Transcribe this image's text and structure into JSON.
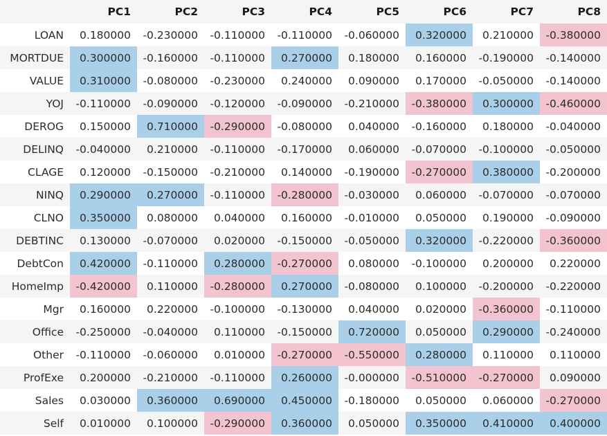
{
  "table": {
    "corner": "",
    "columns": [
      "PC1",
      "PC2",
      "PC3",
      "PC4",
      "PC5",
      "PC6",
      "PC7",
      "PC8"
    ],
    "colors": {
      "positive_highlight": "#a9d0e8",
      "negative_highlight": "#f3c4cf",
      "stripe": "#f5f5f5"
    },
    "rows": [
      {
        "label": "LOAN",
        "values": [
          "0.180000",
          "-0.230000",
          "-0.110000",
          "-0.110000",
          "-0.060000",
          "0.320000",
          "0.210000",
          "-0.380000"
        ],
        "highlight": [
          "",
          "",
          "",
          "",
          "",
          "pos",
          "",
          "neg"
        ]
      },
      {
        "label": "MORTDUE",
        "values": [
          "0.300000",
          "-0.160000",
          "-0.110000",
          "0.270000",
          "0.180000",
          "0.160000",
          "-0.190000",
          "-0.140000"
        ],
        "highlight": [
          "pos",
          "",
          "",
          "pos",
          "",
          "",
          "",
          ""
        ]
      },
      {
        "label": "VALUE",
        "values": [
          "0.310000",
          "-0.080000",
          "-0.230000",
          "0.240000",
          "0.090000",
          "0.170000",
          "-0.050000",
          "-0.140000"
        ],
        "highlight": [
          "pos",
          "",
          "",
          "",
          "",
          "",
          "",
          ""
        ]
      },
      {
        "label": "YOJ",
        "values": [
          "-0.110000",
          "-0.090000",
          "-0.120000",
          "-0.090000",
          "-0.210000",
          "-0.380000",
          "0.300000",
          "-0.460000"
        ],
        "highlight": [
          "",
          "",
          "",
          "",
          "",
          "neg",
          "pos",
          "neg"
        ]
      },
      {
        "label": "DEROG",
        "values": [
          "0.150000",
          "0.710000",
          "-0.290000",
          "-0.080000",
          "0.040000",
          "-0.160000",
          "0.180000",
          "-0.040000"
        ],
        "highlight": [
          "",
          "pos",
          "neg",
          "",
          "",
          "",
          "",
          ""
        ]
      },
      {
        "label": "DELINQ",
        "values": [
          "-0.040000",
          "0.210000",
          "-0.110000",
          "-0.170000",
          "0.060000",
          "-0.070000",
          "-0.100000",
          "-0.050000"
        ],
        "highlight": [
          "",
          "",
          "",
          "",
          "",
          "",
          "",
          ""
        ]
      },
      {
        "label": "CLAGE",
        "values": [
          "0.120000",
          "-0.150000",
          "-0.210000",
          "0.140000",
          "-0.190000",
          "-0.270000",
          "0.380000",
          "-0.200000"
        ],
        "highlight": [
          "",
          "",
          "",
          "",
          "",
          "neg",
          "pos",
          ""
        ]
      },
      {
        "label": "NINQ",
        "values": [
          "0.290000",
          "0.270000",
          "-0.110000",
          "-0.280000",
          "-0.030000",
          "0.060000",
          "-0.070000",
          "-0.070000"
        ],
        "highlight": [
          "pos",
          "pos",
          "",
          "neg",
          "",
          "",
          "",
          ""
        ]
      },
      {
        "label": "CLNO",
        "values": [
          "0.350000",
          "0.080000",
          "0.040000",
          "0.160000",
          "-0.010000",
          "0.050000",
          "0.190000",
          "-0.090000"
        ],
        "highlight": [
          "pos",
          "",
          "",
          "",
          "",
          "",
          "",
          ""
        ]
      },
      {
        "label": "DEBTINC",
        "values": [
          "0.130000",
          "-0.070000",
          "0.020000",
          "-0.150000",
          "-0.050000",
          "0.320000",
          "-0.220000",
          "-0.360000"
        ],
        "highlight": [
          "",
          "",
          "",
          "",
          "",
          "pos",
          "",
          "neg"
        ]
      },
      {
        "label": "DebtCon",
        "values": [
          "0.420000",
          "-0.110000",
          "0.280000",
          "-0.270000",
          "0.080000",
          "-0.100000",
          "0.200000",
          "0.220000"
        ],
        "highlight": [
          "pos",
          "",
          "pos",
          "neg",
          "",
          "",
          "",
          ""
        ]
      },
      {
        "label": "HomeImp",
        "values": [
          "-0.420000",
          "0.110000",
          "-0.280000",
          "0.270000",
          "-0.080000",
          "0.100000",
          "-0.200000",
          "-0.220000"
        ],
        "highlight": [
          "neg",
          "",
          "neg",
          "pos",
          "",
          "",
          "",
          ""
        ]
      },
      {
        "label": "Mgr",
        "values": [
          "0.160000",
          "0.220000",
          "-0.100000",
          "-0.130000",
          "0.040000",
          "0.020000",
          "-0.360000",
          "-0.110000"
        ],
        "highlight": [
          "",
          "",
          "",
          "",
          "",
          "",
          "neg",
          ""
        ]
      },
      {
        "label": "Office",
        "values": [
          "-0.250000",
          "-0.040000",
          "0.110000",
          "-0.150000",
          "0.720000",
          "0.050000",
          "0.290000",
          "-0.240000"
        ],
        "highlight": [
          "",
          "",
          "",
          "",
          "pos",
          "",
          "pos",
          ""
        ]
      },
      {
        "label": "Other",
        "values": [
          "-0.110000",
          "-0.060000",
          "0.010000",
          "-0.270000",
          "-0.550000",
          "0.280000",
          "0.110000",
          "0.110000"
        ],
        "highlight": [
          "",
          "",
          "",
          "neg",
          "neg",
          "pos",
          "",
          ""
        ]
      },
      {
        "label": "ProfExe",
        "values": [
          "0.200000",
          "-0.210000",
          "-0.110000",
          "0.260000",
          "-0.000000",
          "-0.510000",
          "-0.270000",
          "0.090000"
        ],
        "highlight": [
          "",
          "",
          "",
          "pos",
          "",
          "neg",
          "neg",
          ""
        ]
      },
      {
        "label": "Sales",
        "values": [
          "0.030000",
          "0.360000",
          "0.690000",
          "0.450000",
          "-0.180000",
          "0.050000",
          "0.060000",
          "-0.270000"
        ],
        "highlight": [
          "",
          "pos",
          "pos",
          "pos",
          "",
          "",
          "",
          "neg"
        ]
      },
      {
        "label": "Self",
        "values": [
          "0.010000",
          "0.100000",
          "-0.290000",
          "0.360000",
          "0.050000",
          "0.350000",
          "0.410000",
          "0.400000"
        ],
        "highlight": [
          "",
          "",
          "neg",
          "pos",
          "",
          "pos",
          "pos",
          "pos"
        ]
      }
    ]
  }
}
